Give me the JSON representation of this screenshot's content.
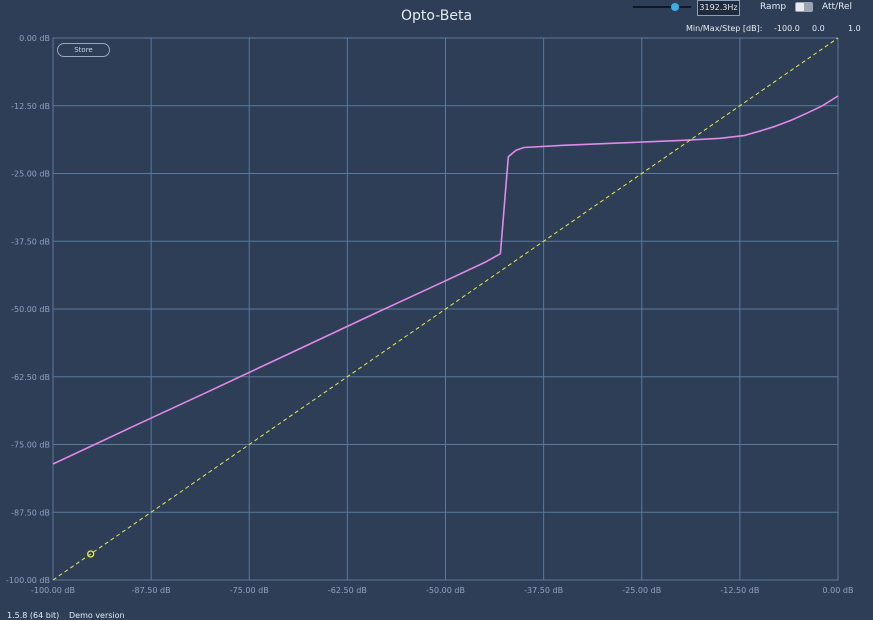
{
  "title": "Opto-Beta",
  "header": {
    "slider_level": 0.72,
    "frequency": "3192.3Hz",
    "ramp_label": "Ramp",
    "att_rel_label": "Att/Rel",
    "min_max_step_label": "Min/Max/Step [dB]:",
    "min_value": "-100.0",
    "max_value": "0.0",
    "step_value": "1.0"
  },
  "store_label": "Store",
  "footer": {
    "version": "1.5.8 (64 bit)",
    "status": "Demo version"
  },
  "colors": {
    "background": "#2e3e57",
    "grid": "#5a7a9e",
    "transfer_curve": "#e08ae8",
    "reference_line": "#e8e84a",
    "accent": "#3ab0e8"
  },
  "chart_data": {
    "type": "line",
    "xlim": [
      -100,
      0
    ],
    "ylim": [
      -100,
      0
    ],
    "x_ticks": [
      -100,
      -87.5,
      -75,
      -62.5,
      -50,
      -37.5,
      -25,
      -12.5,
      0
    ],
    "y_ticks": [
      0,
      -12.5,
      -25,
      -37.5,
      -50,
      -62.5,
      -75,
      -87.5,
      -100
    ],
    "x_tick_labels": [
      "-100.00 dB",
      "-87.50 dB",
      "-75.00 dB",
      "-62.50 dB",
      "-50.00 dB",
      "-37.50 dB",
      "-25.00 dB",
      "-12.50 dB",
      "0.00 dB"
    ],
    "y_tick_labels": [
      "0.00 dB",
      "-12.50 dB",
      "-25.00 dB",
      "-37.50 dB",
      "-50.00 dB",
      "-62.50 dB",
      "-75.00 dB",
      "-87.50 dB",
      "-100.00 dB"
    ],
    "grid": true,
    "series": [
      {
        "style": "solid",
        "x": [
          -100,
          -90,
          -80,
          -70,
          -60,
          -50,
          -45,
          -43,
          -42,
          -41,
          -40,
          -35,
          -30,
          -25,
          -20,
          -15,
          -12,
          -10,
          -8,
          -6,
          -4,
          -2,
          0
        ],
        "y": [
          -78.6,
          -71.8,
          -65.1,
          -58.3,
          -51.5,
          -44.8,
          -41.4,
          -39.8,
          -21.9,
          -20.7,
          -20.2,
          -19.8,
          -19.5,
          -19.2,
          -18.9,
          -18.5,
          -18.0,
          -17.2,
          -16.3,
          -15.2,
          -13.9,
          -12.5,
          -10.7
        ]
      },
      {
        "style": "dashed",
        "x": [
          -100,
          0
        ],
        "y": [
          -100,
          0
        ]
      }
    ],
    "marker": {
      "x": -95.2,
      "y": -95.2
    }
  }
}
